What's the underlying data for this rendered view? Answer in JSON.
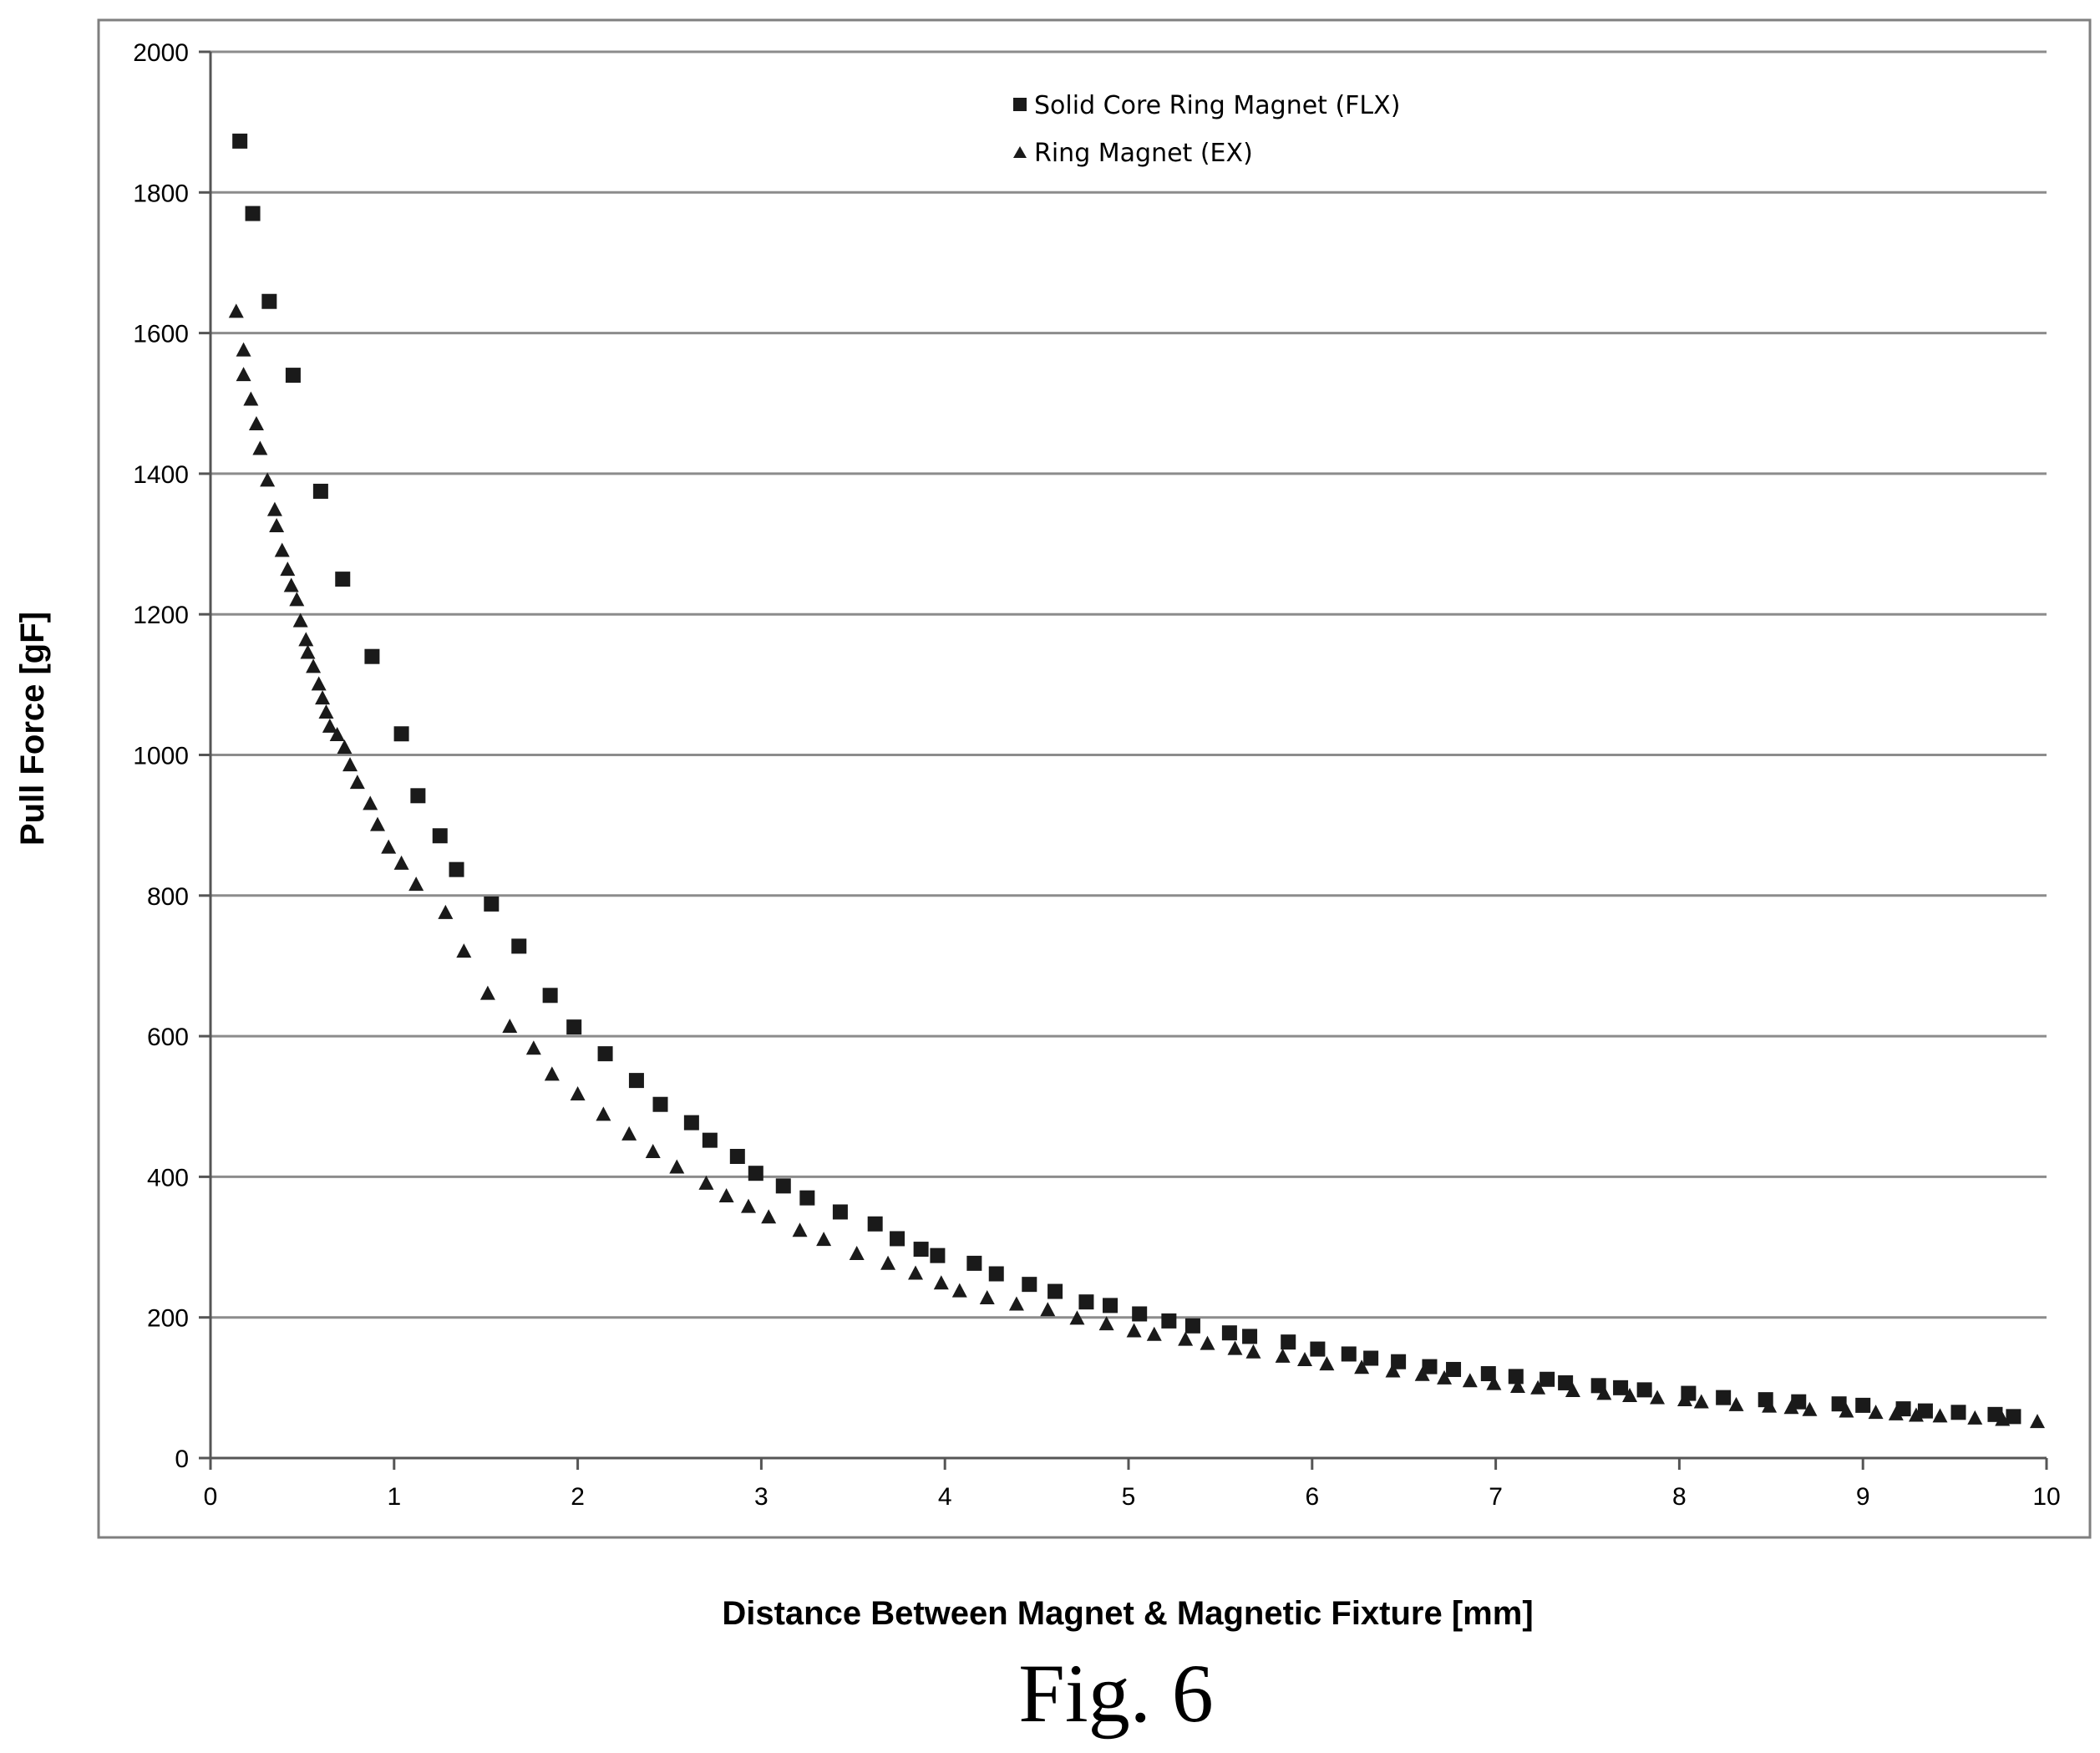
{
  "chart_data": {
    "type": "scatter",
    "xlabel": "Distance Between Magnet & Magnetic Fixture [mm]",
    "ylabel": "Pull Force [gF]",
    "xlim": [
      0,
      10
    ],
    "ylim": [
      0,
      2000
    ],
    "x_ticks": [
      "0",
      "1",
      "2",
      "3",
      "4",
      "5",
      "6",
      "7",
      "8",
      "9",
      "10"
    ],
    "y_ticks": [
      "0",
      "200",
      "400",
      "600",
      "800",
      "1000",
      "1200",
      "1400",
      "1600",
      "1800",
      "2000"
    ],
    "grid": "horizontal",
    "legend_position": "top-center",
    "series": [
      {
        "name": "Solid Core Ring Magnet (FLX)",
        "marker": "square",
        "color": "#1a1a1a",
        "points": [
          [
            0.16,
            1873
          ],
          [
            0.23,
            1770
          ],
          [
            0.32,
            1645
          ],
          [
            0.45,
            1540
          ],
          [
            0.6,
            1375
          ],
          [
            0.72,
            1250
          ],
          [
            0.88,
            1140
          ],
          [
            1.04,
            1030
          ],
          [
            1.13,
            942
          ],
          [
            1.25,
            885
          ],
          [
            1.34,
            837
          ],
          [
            1.53,
            788
          ],
          [
            1.68,
            728
          ],
          [
            1.85,
            658
          ],
          [
            1.98,
            613
          ],
          [
            2.15,
            575
          ],
          [
            2.32,
            537
          ],
          [
            2.45,
            503
          ],
          [
            2.62,
            477
          ],
          [
            2.72,
            452
          ],
          [
            2.87,
            429
          ],
          [
            2.97,
            405
          ],
          [
            3.12,
            387
          ],
          [
            3.25,
            370
          ],
          [
            3.43,
            350
          ],
          [
            3.62,
            333
          ],
          [
            3.74,
            312
          ],
          [
            3.87,
            297
          ],
          [
            3.96,
            288
          ],
          [
            4.16,
            277
          ],
          [
            4.28,
            262
          ],
          [
            4.46,
            247
          ],
          [
            4.6,
            237
          ],
          [
            4.77,
            222
          ],
          [
            4.9,
            217
          ],
          [
            5.06,
            205
          ],
          [
            5.22,
            195
          ],
          [
            5.35,
            188
          ],
          [
            5.55,
            178
          ],
          [
            5.66,
            173
          ],
          [
            5.87,
            165
          ],
          [
            6.03,
            155
          ],
          [
            6.2,
            148
          ],
          [
            6.32,
            142
          ],
          [
            6.47,
            137
          ],
          [
            6.64,
            130
          ],
          [
            6.77,
            126
          ],
          [
            6.96,
            120
          ],
          [
            7.11,
            116
          ],
          [
            7.28,
            112
          ],
          [
            7.38,
            107
          ],
          [
            7.56,
            103
          ],
          [
            7.68,
            100
          ],
          [
            7.81,
            97
          ],
          [
            8.05,
            92
          ],
          [
            8.24,
            86
          ],
          [
            8.47,
            83
          ],
          [
            8.65,
            80
          ],
          [
            8.87,
            77
          ],
          [
            9.0,
            75
          ],
          [
            9.22,
            70
          ],
          [
            9.34,
            67
          ],
          [
            9.52,
            65
          ],
          [
            9.72,
            62
          ],
          [
            9.82,
            59
          ]
        ]
      },
      {
        "name": "Ring Magnet (EX)",
        "marker": "triangle",
        "color": "#1a1a1a",
        "points": [
          [
            0.14,
            1630
          ],
          [
            0.18,
            1575
          ],
          [
            0.18,
            1540
          ],
          [
            0.22,
            1505
          ],
          [
            0.25,
            1470
          ],
          [
            0.27,
            1435
          ],
          [
            0.31,
            1390
          ],
          [
            0.35,
            1348
          ],
          [
            0.36,
            1325
          ],
          [
            0.39,
            1290
          ],
          [
            0.42,
            1263
          ],
          [
            0.44,
            1240
          ],
          [
            0.47,
            1220
          ],
          [
            0.49,
            1190
          ],
          [
            0.52,
            1163
          ],
          [
            0.53,
            1145
          ],
          [
            0.56,
            1125
          ],
          [
            0.59,
            1100
          ],
          [
            0.61,
            1080
          ],
          [
            0.63,
            1060
          ],
          [
            0.65,
            1040
          ],
          [
            0.69,
            1028
          ],
          [
            0.73,
            1010
          ],
          [
            0.76,
            985
          ],
          [
            0.8,
            960
          ],
          [
            0.87,
            930
          ],
          [
            0.91,
            900
          ],
          [
            0.97,
            868
          ],
          [
            1.04,
            845
          ],
          [
            1.12,
            815
          ],
          [
            1.28,
            775
          ],
          [
            1.38,
            720
          ],
          [
            1.51,
            660
          ],
          [
            1.63,
            613
          ],
          [
            1.76,
            582
          ],
          [
            1.86,
            545
          ],
          [
            2.0,
            517
          ],
          [
            2.14,
            488
          ],
          [
            2.28,
            460
          ],
          [
            2.41,
            435
          ],
          [
            2.54,
            413
          ],
          [
            2.7,
            390
          ],
          [
            2.81,
            372
          ],
          [
            2.93,
            357
          ],
          [
            3.04,
            342
          ],
          [
            3.21,
            323
          ],
          [
            3.34,
            310
          ],
          [
            3.52,
            290
          ],
          [
            3.69,
            276
          ],
          [
            3.84,
            262
          ],
          [
            3.98,
            248
          ],
          [
            4.08,
            237
          ],
          [
            4.23,
            227
          ],
          [
            4.39,
            218
          ],
          [
            4.56,
            210
          ],
          [
            4.72,
            198
          ],
          [
            4.88,
            190
          ],
          [
            5.03,
            180
          ],
          [
            5.14,
            175
          ],
          [
            5.31,
            168
          ],
          [
            5.43,
            162
          ],
          [
            5.58,
            155
          ],
          [
            5.68,
            150
          ],
          [
            5.84,
            144
          ],
          [
            5.96,
            139
          ],
          [
            6.08,
            133
          ],
          [
            6.27,
            128
          ],
          [
            6.44,
            123
          ],
          [
            6.6,
            118
          ],
          [
            6.72,
            113
          ],
          [
            6.86,
            109
          ],
          [
            6.99,
            105
          ],
          [
            7.12,
            101
          ],
          [
            7.23,
            99
          ],
          [
            7.42,
            95
          ],
          [
            7.59,
            91
          ],
          [
            7.73,
            88
          ],
          [
            7.88,
            85
          ],
          [
            8.03,
            82
          ],
          [
            8.12,
            79
          ],
          [
            8.31,
            75
          ],
          [
            8.49,
            73
          ],
          [
            8.61,
            71
          ],
          [
            8.71,
            68
          ],
          [
            8.91,
            66
          ],
          [
            9.07,
            64
          ],
          [
            9.18,
            62
          ],
          [
            9.29,
            60
          ],
          [
            9.42,
            59
          ],
          [
            9.61,
            56
          ],
          [
            9.76,
            54
          ],
          [
            9.95,
            51
          ]
        ]
      }
    ]
  },
  "figure": {
    "caption": "Fig. 6"
  }
}
